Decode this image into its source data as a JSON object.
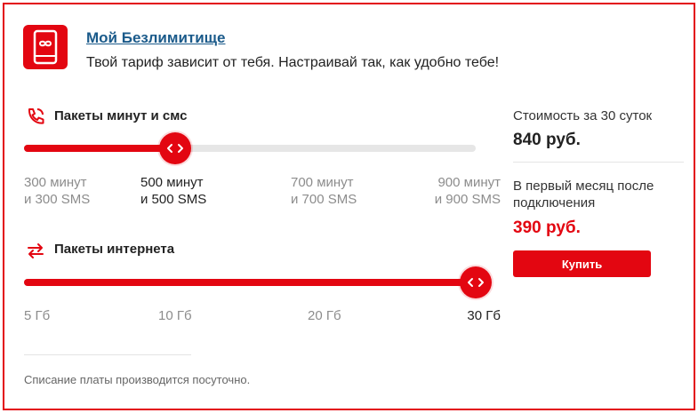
{
  "colors": {
    "accent": "#e30611",
    "link": "#1a5a8a"
  },
  "header": {
    "logo_icon": "phone-infinity-icon",
    "title": "Мой Безлимитище",
    "subtitle": "Твой тариф зависит от тебя. Настраивай так, как удобно тебе!"
  },
  "minutes": {
    "icon": "phone-call-icon",
    "title": "Пакеты минут и смс",
    "selected_index": 1,
    "options": [
      {
        "line1": "300 минут",
        "line2": "и 300 SMS"
      },
      {
        "line1": "500 минут",
        "line2": "и 500 SMS"
      },
      {
        "line1": "700 минут",
        "line2": "и 700 SMS"
      },
      {
        "line1": "900 минут",
        "line2": "и 900 SMS"
      }
    ]
  },
  "internet": {
    "icon": "exchange-arrows-icon",
    "title": "Пакеты интернета",
    "selected_index": 3,
    "options": [
      "5 Гб",
      "10 Гб",
      "20 Гб",
      "30 Гб"
    ]
  },
  "pricing": {
    "cost_label": "Стоимость за 30 суток",
    "cost_value": "840 руб.",
    "first_month_line1": "В первый месяц после",
    "first_month_line2": "подключения",
    "first_month_value": "390 руб.",
    "buy_label": "Купить"
  },
  "footer_note": "Списание платы производится посуточно."
}
